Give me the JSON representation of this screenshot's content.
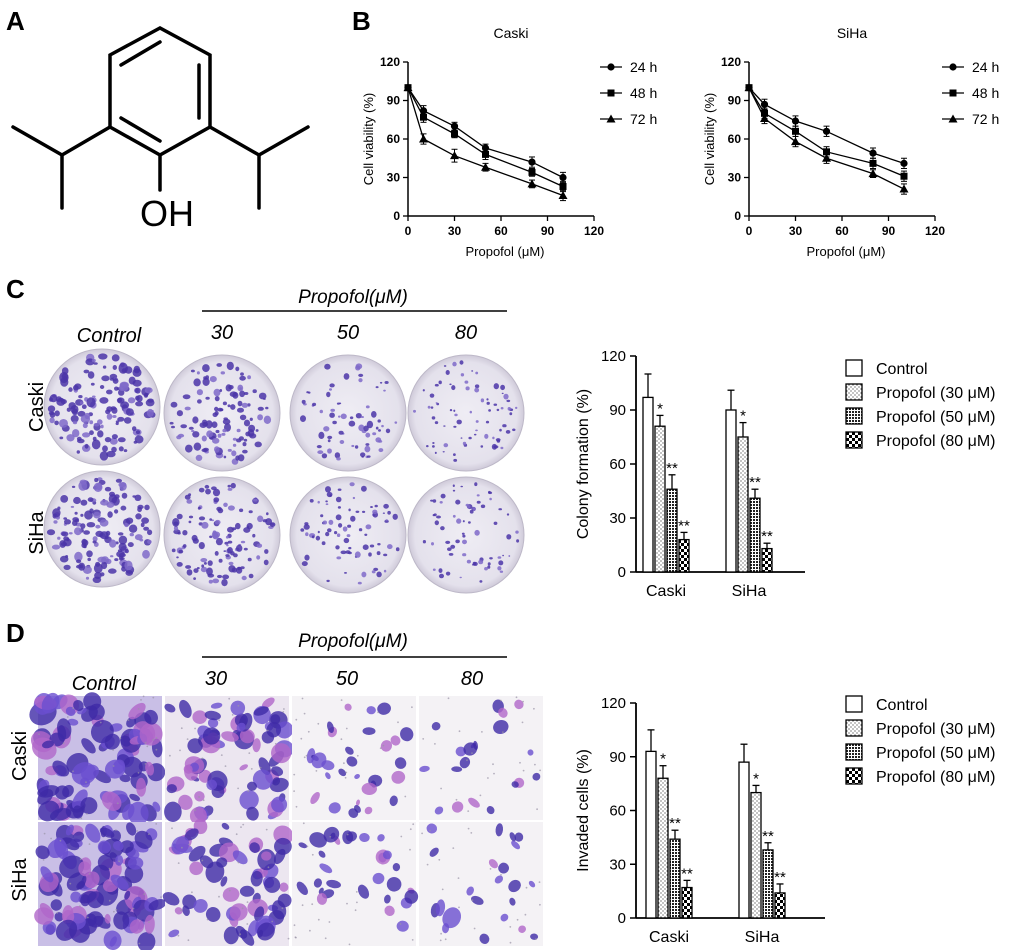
{
  "colors": {
    "axis": "#000000",
    "stain": "#5b3fb8",
    "well_bg": "#e9e6f0",
    "micro_bg": "#f4f1f7"
  },
  "panels": {
    "A": {
      "label": "A",
      "structure_label": "OH",
      "structure_name": "propofol"
    },
    "B": {
      "label": "B"
    },
    "C": {
      "label": "C",
      "treatment_title": "Propofol(μM)",
      "column_labels": [
        "Control",
        "30",
        "50",
        "80"
      ],
      "row_labels": [
        "Caski",
        "SiHa"
      ]
    },
    "D": {
      "label": "D",
      "treatment_title": "Propofol(μM)",
      "column_labels": [
        "Control",
        "30",
        "50",
        "80"
      ],
      "row_labels": [
        "Caski",
        "SiHa"
      ]
    }
  },
  "chart_data": [
    {
      "id": "B-caski",
      "type": "line",
      "title": "Caski",
      "xlabel": "Propofol (μM)",
      "ylabel": "Cell viability (%)",
      "xlim": [
        0,
        120
      ],
      "ylim": [
        0,
        120
      ],
      "xticks": [
        0,
        30,
        60,
        90,
        120
      ],
      "yticks": [
        0,
        30,
        60,
        90,
        120
      ],
      "legend_position": "right",
      "series": [
        {
          "name": "24 h",
          "marker": "circle",
          "x": [
            0,
            10,
            30,
            50,
            80,
            100
          ],
          "y": [
            100,
            82,
            70,
            53,
            42,
            30
          ],
          "err": [
            2,
            4,
            3,
            3,
            4,
            4
          ]
        },
        {
          "name": "48 h",
          "marker": "square",
          "x": [
            0,
            10,
            30,
            50,
            80,
            100
          ],
          "y": [
            100,
            77,
            64,
            48,
            34,
            23
          ],
          "err": [
            2,
            4,
            3,
            4,
            3,
            4
          ]
        },
        {
          "name": "72 h",
          "marker": "triangle",
          "x": [
            0,
            10,
            30,
            50,
            80,
            100
          ],
          "y": [
            100,
            60,
            47,
            38,
            25,
            16
          ],
          "err": [
            2,
            4,
            5,
            3,
            3,
            4
          ]
        }
      ]
    },
    {
      "id": "B-siha",
      "type": "line",
      "title": "SiHa",
      "xlabel": "Propofol (μM)",
      "ylabel": "Cell viability (%)",
      "xlim": [
        0,
        120
      ],
      "ylim": [
        0,
        120
      ],
      "xticks": [
        0,
        30,
        60,
        90,
        120
      ],
      "yticks": [
        0,
        30,
        60,
        90,
        120
      ],
      "legend_position": "right",
      "series": [
        {
          "name": "24 h",
          "marker": "circle",
          "x": [
            0,
            10,
            30,
            50,
            80,
            100
          ],
          "y": [
            100,
            87,
            74,
            66,
            49,
            41
          ],
          "err": [
            2,
            4,
            4,
            4,
            4,
            4
          ]
        },
        {
          "name": "48 h",
          "marker": "square",
          "x": [
            0,
            10,
            30,
            50,
            80,
            100
          ],
          "y": [
            100,
            80,
            66,
            50,
            41,
            31
          ],
          "err": [
            2,
            4,
            4,
            4,
            4,
            4
          ]
        },
        {
          "name": "72 h",
          "marker": "triangle",
          "x": [
            0,
            10,
            30,
            50,
            80,
            100
          ],
          "y": [
            100,
            76,
            58,
            45,
            33,
            21
          ],
          "err": [
            2,
            4,
            4,
            4,
            3,
            4
          ]
        }
      ]
    },
    {
      "id": "C-colony",
      "type": "bar",
      "title": "",
      "xlabel": "",
      "ylabel": "Colony formation (%)",
      "ylim": [
        0,
        120
      ],
      "yticks": [
        0,
        30,
        60,
        90,
        120
      ],
      "categories": [
        "Caski",
        "SiHa"
      ],
      "legend_position": "right",
      "series": [
        {
          "name": "Control",
          "pattern": "plain",
          "values": [
            97,
            90
          ],
          "err": [
            13,
            11
          ],
          "sig": [
            "",
            ""
          ]
        },
        {
          "name": "Propofol (30 μM)",
          "pattern": "dots",
          "values": [
            81,
            75
          ],
          "err": [
            6,
            8
          ],
          "sig": [
            "*",
            "*"
          ]
        },
        {
          "name": "Propofol (50 μM)",
          "pattern": "mesh",
          "values": [
            46,
            41
          ],
          "err": [
            8,
            5
          ],
          "sig": [
            "**",
            "**"
          ]
        },
        {
          "name": "Propofol (80 μM)",
          "pattern": "checks",
          "values": [
            18,
            13
          ],
          "err": [
            4,
            3
          ],
          "sig": [
            "**",
            "**"
          ]
        }
      ]
    },
    {
      "id": "D-invasion",
      "type": "bar",
      "title": "",
      "xlabel": "",
      "ylabel": "Invaded cells (%)",
      "ylim": [
        0,
        120
      ],
      "yticks": [
        0,
        30,
        60,
        90,
        120
      ],
      "categories": [
        "Caski",
        "SiHa"
      ],
      "legend_position": "right",
      "series": [
        {
          "name": "Control",
          "pattern": "plain",
          "values": [
            93,
            87
          ],
          "err": [
            12,
            10
          ],
          "sig": [
            "",
            ""
          ]
        },
        {
          "name": "Propofol (30 μM)",
          "pattern": "dots",
          "values": [
            78,
            70
          ],
          "err": [
            7,
            4
          ],
          "sig": [
            "*",
            "*"
          ]
        },
        {
          "name": "Propofol (50 μM)",
          "pattern": "mesh",
          "values": [
            44,
            38
          ],
          "err": [
            5,
            4
          ],
          "sig": [
            "**",
            "**"
          ]
        },
        {
          "name": "Propofol (80 μM)",
          "pattern": "checks",
          "values": [
            17,
            14
          ],
          "err": [
            4,
            5
          ],
          "sig": [
            "**",
            "**"
          ]
        }
      ]
    }
  ]
}
